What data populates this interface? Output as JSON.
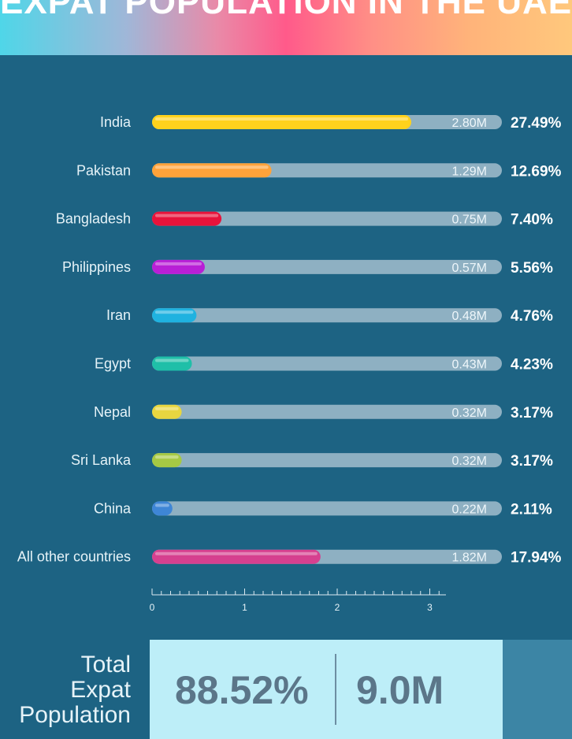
{
  "title": "EXPAT POPULATION IN THE UAE",
  "chart_data": {
    "type": "bar",
    "orientation": "horizontal",
    "categories": [
      "India",
      "Pakistan",
      "Bangladesh",
      "Philippines",
      "Iran",
      "Egypt",
      "Nepal",
      "Sri Lanka",
      "China",
      "All other countries"
    ],
    "values": [
      2.8,
      1.29,
      0.75,
      0.57,
      0.48,
      0.43,
      0.32,
      0.32,
      0.22,
      1.82
    ],
    "value_labels": [
      "2.80M",
      "1.29M",
      "0.75M",
      "0.57M",
      "0.48M",
      "0.43M",
      "0.32M",
      "0.32M",
      "0.22M",
      "1.82M"
    ],
    "percent_labels": [
      "27.49%",
      "12.69%",
      "7.40%",
      "5.56%",
      "4.76%",
      "4.23%",
      "3.17%",
      "3.17%",
      "2.11%",
      "17.94%"
    ],
    "colors": [
      "#ffd21c",
      "#ffa33a",
      "#e8133b",
      "#b81fd6",
      "#1fb2e0",
      "#1fbfa8",
      "#e8d640",
      "#a6c944",
      "#3e86d6",
      "#d6408f"
    ],
    "track_color": "#8eb0c2",
    "xlim": [
      0,
      3.8
    ],
    "xticks": [
      0,
      1,
      2,
      3
    ],
    "xtick_labels": [
      "0",
      "1",
      "2",
      "3"
    ],
    "grid": false,
    "legend": "none"
  },
  "total": {
    "label_lines": [
      "Total",
      "Expat",
      "Population"
    ],
    "percent": "88.52%",
    "count": "9.0M"
  }
}
